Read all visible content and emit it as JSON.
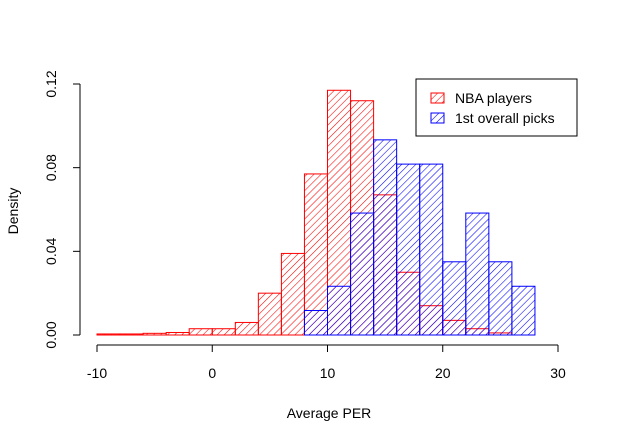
{
  "chart_data": {
    "type": "bar",
    "subtype": "overlaid-histogram",
    "title": "",
    "xlabel": "Average PER",
    "ylabel": "Density",
    "xlim": [
      -10,
      30
    ],
    "ylim": [
      0,
      0.12
    ],
    "x_ticks": [
      -10,
      0,
      10,
      20,
      30
    ],
    "x_tick_labels": [
      "-10",
      "0",
      "10",
      "20",
      "30"
    ],
    "y_ticks": [
      0,
      0.04,
      0.08,
      0.12
    ],
    "y_tick_labels": [
      "0.00",
      "0.04",
      "0.08",
      "0.12"
    ],
    "grid": false,
    "legend_position": "top-right",
    "series": [
      {
        "name": "NBA players",
        "color": "#ff0000",
        "fill": "hatched",
        "bins": [
          {
            "x0": -10,
            "x1": -8,
            "value": 0.0005
          },
          {
            "x0": -8,
            "x1": -6,
            "value": 0.0005
          },
          {
            "x0": -6,
            "x1": -4,
            "value": 0.0008
          },
          {
            "x0": -4,
            "x1": -2,
            "value": 0.0012
          },
          {
            "x0": -2,
            "x1": 0,
            "value": 0.003
          },
          {
            "x0": 0,
            "x1": 2,
            "value": 0.003
          },
          {
            "x0": 2,
            "x1": 4,
            "value": 0.006
          },
          {
            "x0": 4,
            "x1": 6,
            "value": 0.02
          },
          {
            "x0": 6,
            "x1": 8,
            "value": 0.039
          },
          {
            "x0": 8,
            "x1": 10,
            "value": 0.077
          },
          {
            "x0": 10,
            "x1": 12,
            "value": 0.117
          },
          {
            "x0": 12,
            "x1": 14,
            "value": 0.112
          },
          {
            "x0": 14,
            "x1": 16,
            "value": 0.067
          },
          {
            "x0": 16,
            "x1": 18,
            "value": 0.03
          },
          {
            "x0": 18,
            "x1": 20,
            "value": 0.014
          },
          {
            "x0": 20,
            "x1": 22,
            "value": 0.007
          },
          {
            "x0": 22,
            "x1": 24,
            "value": 0.003
          },
          {
            "x0": 24,
            "x1": 26,
            "value": 0.001
          }
        ]
      },
      {
        "name": "1st overall picks",
        "color": "#0000ff",
        "fill": "hatched",
        "bins": [
          {
            "x0": 8,
            "x1": 10,
            "value": 0.0117
          },
          {
            "x0": 10,
            "x1": 12,
            "value": 0.0233
          },
          {
            "x0": 12,
            "x1": 14,
            "value": 0.0583
          },
          {
            "x0": 14,
            "x1": 16,
            "value": 0.0933
          },
          {
            "x0": 16,
            "x1": 18,
            "value": 0.0817
          },
          {
            "x0": 18,
            "x1": 20,
            "value": 0.0817
          },
          {
            "x0": 20,
            "x1": 22,
            "value": 0.035
          },
          {
            "x0": 22,
            "x1": 24,
            "value": 0.0583
          },
          {
            "x0": 24,
            "x1": 26,
            "value": 0.035
          },
          {
            "x0": 26,
            "x1": 28,
            "value": 0.0233
          }
        ]
      }
    ]
  }
}
